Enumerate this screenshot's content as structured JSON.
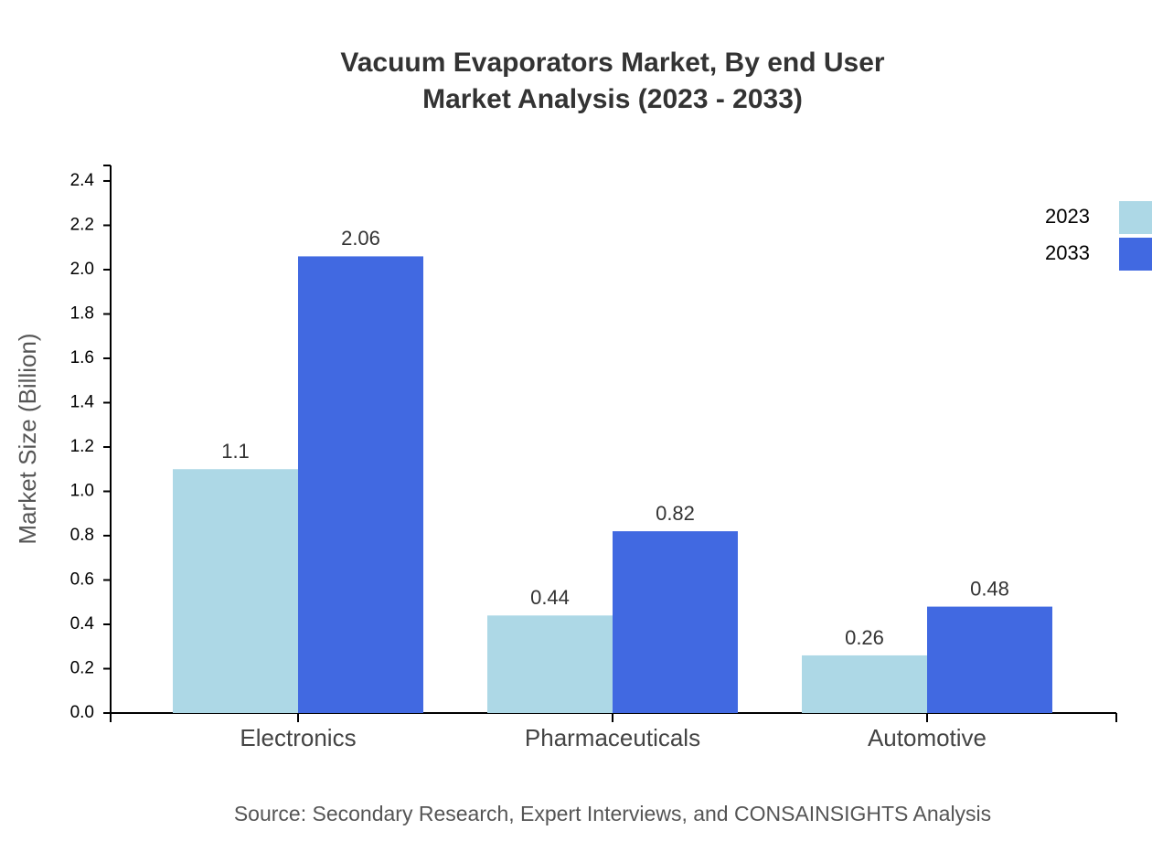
{
  "chart_data": {
    "type": "bar",
    "title": [
      "Vacuum Evaporators Market, By end User",
      "Market Analysis (2023 - 2033)"
    ],
    "y_label": "Market Size (Billion)",
    "source": "Source: Secondary Research, Expert Interviews, and CONSAINSIGHTS Analysis",
    "categories": [
      "Electronics",
      "Pharmaceuticals",
      "Automotive"
    ],
    "series": [
      {
        "name": "2023",
        "color": "#add8e6",
        "values": [
          1.1,
          0.44,
          0.26
        ]
      },
      {
        "name": "2033",
        "color": "#4169e1",
        "values": [
          2.06,
          0.82,
          0.48
        ]
      }
    ],
    "ylim": [
      0,
      2.47
    ],
    "yticks": [
      {
        "value": 0,
        "label": "0.0"
      },
      0.2,
      0.4,
      0.6,
      0.8,
      {
        "value": 1,
        "label": "1.0"
      },
      1.2,
      1.4,
      1.6,
      1.8,
      {
        "value": 2,
        "label": "2.0"
      },
      2.2,
      2.4
    ],
    "legend": "top-right"
  }
}
